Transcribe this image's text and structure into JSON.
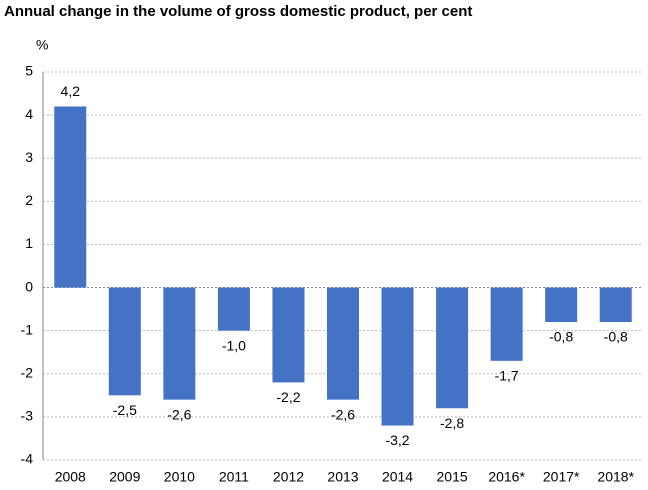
{
  "chart_data": {
    "type": "bar",
    "title": "Annual change in the volume of gross domestic product, per cent",
    "ylabel": "%",
    "categories": [
      "2008",
      "2009",
      "2010",
      "2011",
      "2012",
      "2013",
      "2014",
      "2015",
      "2016*",
      "2017*",
      "2018*"
    ],
    "values": [
      4.2,
      -2.5,
      -2.6,
      -1.0,
      -2.2,
      -2.6,
      -3.2,
      -2.8,
      -1.7,
      -0.8,
      -0.8
    ],
    "value_labels": [
      "4,2",
      "-2,5",
      "-2,6",
      "-1,0",
      "-2,2",
      "-2,6",
      "-3,2",
      "-2,8",
      "-1,7",
      "-0,8",
      "-0,8"
    ],
    "color": "#4472c4",
    "ylim": [
      -4,
      5
    ],
    "yticks": [
      5,
      4,
      3,
      2,
      1,
      0,
      -1,
      -2,
      -3,
      -4
    ],
    "grid": true
  }
}
